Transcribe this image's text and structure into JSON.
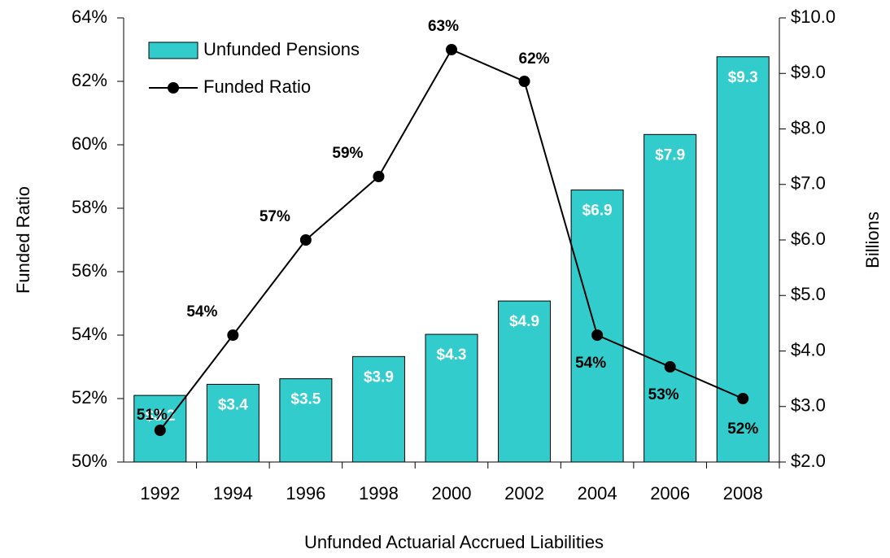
{
  "chart_data": {
    "type": "combo",
    "x_label": "Unfunded Actuarial Accrued Liabilities",
    "y_label": "Funded Ratio",
    "y2_label": "Billions",
    "categories": [
      "1992",
      "1994",
      "1996",
      "1998",
      "2000",
      "2002",
      "2004",
      "2006",
      "2008"
    ],
    "series": [
      {
        "name": "Unfunded Pensions",
        "type": "bar",
        "axis": "y2",
        "color": "#33cccc",
        "values": [
          3.2,
          3.4,
          3.5,
          3.9,
          4.3,
          4.9,
          6.9,
          7.9,
          9.3
        ],
        "value_labels": [
          "$3.2",
          "$3.4",
          "$3.5",
          "$3.9",
          "$4.3",
          "$4.9",
          "$6.9",
          "$7.9",
          "$9.3"
        ]
      },
      {
        "name": "Funded Ratio",
        "type": "line",
        "color": "#000000",
        "values": [
          51,
          54,
          57,
          59,
          63,
          62,
          54,
          53,
          52
        ],
        "value_labels": [
          "51%",
          "54%",
          "57%",
          "59%",
          "63%",
          "62%",
          "54%",
          "53%",
          "52%"
        ]
      }
    ],
    "ylim": [
      50,
      64
    ],
    "yticks": [
      {
        "value": 50,
        "label": "50%"
      },
      {
        "value": 52,
        "label": "52%"
      },
      {
        "value": 54,
        "label": "54%"
      },
      {
        "value": 56,
        "label": "56%"
      },
      {
        "value": 58,
        "label": "58%"
      },
      {
        "value": 60,
        "label": "60%"
      },
      {
        "value": 62,
        "label": "62%"
      },
      {
        "value": 64,
        "label": "64%"
      }
    ],
    "y2lim": [
      2,
      10
    ],
    "y2ticks": [
      {
        "value": 2,
        "label": "$2.0"
      },
      {
        "value": 3,
        "label": "$3.0"
      },
      {
        "value": 4,
        "label": "$4.0"
      },
      {
        "value": 5,
        "label": "$5.0"
      },
      {
        "value": 6,
        "label": "$6.0"
      },
      {
        "value": 7,
        "label": "$7.0"
      },
      {
        "value": 8,
        "label": "$8.0"
      },
      {
        "value": 9,
        "label": "$9.0"
      },
      {
        "value": 10,
        "label": "$10.0"
      }
    ],
    "legend": "upper left"
  }
}
